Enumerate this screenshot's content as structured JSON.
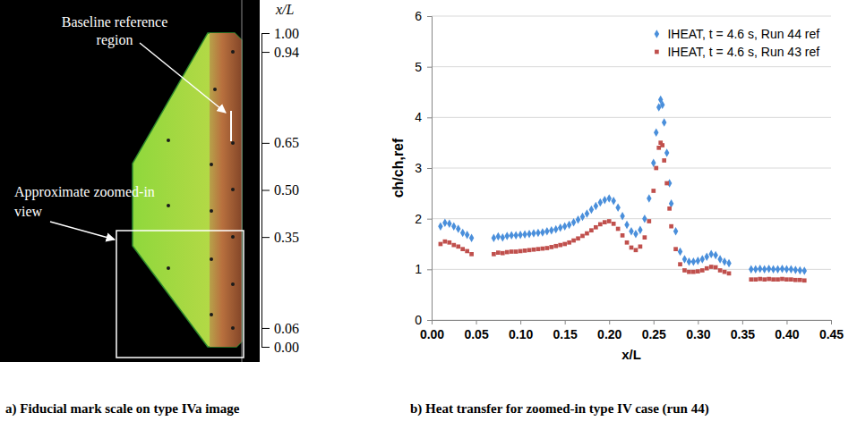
{
  "chart_data": [
    {
      "type": "image",
      "caption": "a) Fiducial mark scale on type IVa image",
      "y_label": "x/L",
      "ylim": [
        0,
        1
      ],
      "yticks": [
        {
          "value": 1,
          "label": "1.00"
        },
        {
          "value": 0.94,
          "label": "0.94"
        },
        {
          "value": 0.65,
          "label": "0.65"
        },
        {
          "value": 0.5,
          "label": "0.50"
        },
        {
          "value": 0.35,
          "label": "0.35"
        },
        {
          "value": 0.06,
          "label": "0.06"
        },
        {
          "value": 0,
          "label": "0.00"
        }
      ],
      "annotations": [
        "Baseline reference region",
        "Approximate zoomed-in view"
      ]
    },
    {
      "type": "scatter",
      "caption": "b) Heat transfer for zoomed-in type IV case (run 44)",
      "x_label": "x/L",
      "y_label": "ch/ch,ref",
      "xlim": [
        0,
        0.45
      ],
      "xticks": [
        {
          "value": 0,
          "label": "0.00"
        },
        {
          "value": 0.05,
          "label": "0.05"
        },
        {
          "value": 0.1,
          "label": "0.10"
        },
        {
          "value": 0.15,
          "label": "0.15"
        },
        {
          "value": 0.2,
          "label": "0.20"
        },
        {
          "value": 0.25,
          "label": "0.25"
        },
        {
          "value": 0.3,
          "label": "0.30"
        },
        {
          "value": 0.35,
          "label": "0.35"
        },
        {
          "value": 0.4,
          "label": "0.40"
        },
        {
          "value": 0.45,
          "label": "0.45"
        }
      ],
      "ylim": [
        0,
        6
      ],
      "yticks": [
        0,
        1,
        2,
        3,
        4,
        5,
        6
      ],
      "grid": true,
      "legend": "upper right",
      "x": [
        0.01,
        0.015,
        0.02,
        0.025,
        0.03,
        0.035,
        0.04,
        0.045,
        0.07,
        0.075,
        0.08,
        0.085,
        0.09,
        0.095,
        0.1,
        0.105,
        0.11,
        0.115,
        0.12,
        0.125,
        0.13,
        0.135,
        0.14,
        0.145,
        0.15,
        0.155,
        0.16,
        0.165,
        0.17,
        0.175,
        0.18,
        0.185,
        0.19,
        0.195,
        0.2,
        0.205,
        0.21,
        0.215,
        0.22,
        0.225,
        0.23,
        0.235,
        0.24,
        0.245,
        0.25,
        0.253,
        0.256,
        0.258,
        0.26,
        0.262,
        0.265,
        0.268,
        0.27,
        0.275,
        0.28,
        0.285,
        0.29,
        0.295,
        0.3,
        0.305,
        0.31,
        0.315,
        0.32,
        0.325,
        0.33,
        0.335,
        0.36,
        0.365,
        0.37,
        0.375,
        0.38,
        0.385,
        0.39,
        0.395,
        0.4,
        0.405,
        0.41,
        0.415,
        0.42
      ],
      "series": [
        {
          "name": "IHEAT, t = 4.6 s, Run 44 ref",
          "color": "#4a8fdb",
          "marker": "diamond",
          "values": [
            1.85,
            1.92,
            1.9,
            1.85,
            1.8,
            1.72,
            1.68,
            1.62,
            1.62,
            1.65,
            1.63,
            1.66,
            1.67,
            1.67,
            1.68,
            1.69,
            1.7,
            1.71,
            1.72,
            1.73,
            1.75,
            1.77,
            1.79,
            1.82,
            1.85,
            1.88,
            1.93,
            1.98,
            2.04,
            2.1,
            2.18,
            2.25,
            2.32,
            2.37,
            2.4,
            2.35,
            2.22,
            2.05,
            1.88,
            1.75,
            1.7,
            1.78,
            2.0,
            2.4,
            3.1,
            3.7,
            4.2,
            4.35,
            4.25,
            3.9,
            3.3,
            2.7,
            2.3,
            1.75,
            1.35,
            1.2,
            1.15,
            1.15,
            1.17,
            1.2,
            1.25,
            1.3,
            1.28,
            1.2,
            1.15,
            1.12,
            1.0,
            1.0,
            1.01,
            1.0,
            1.01,
            1.0,
            1.0,
            1.01,
            1.0,
            1.0,
            0.99,
            0.98,
            0.97
          ]
        },
        {
          "name": "IHEAT, t = 4.6 s, Run 43 ref",
          "color": "#c0504d",
          "marker": "square",
          "values": [
            1.5,
            1.55,
            1.53,
            1.48,
            1.45,
            1.4,
            1.36,
            1.3,
            1.3,
            1.33,
            1.32,
            1.34,
            1.35,
            1.35,
            1.36,
            1.37,
            1.38,
            1.39,
            1.4,
            1.41,
            1.42,
            1.44,
            1.46,
            1.48,
            1.5,
            1.53,
            1.57,
            1.61,
            1.66,
            1.71,
            1.77,
            1.83,
            1.89,
            1.93,
            1.95,
            1.9,
            1.8,
            1.67,
            1.53,
            1.43,
            1.38,
            1.45,
            1.63,
            1.95,
            2.55,
            3.0,
            3.4,
            3.5,
            3.45,
            3.15,
            2.7,
            2.2,
            1.85,
            1.4,
            1.1,
            0.98,
            0.95,
            0.95,
            0.96,
            0.98,
            1.02,
            1.05,
            1.04,
            0.98,
            0.95,
            0.92,
            0.8,
            0.8,
            0.81,
            0.8,
            0.81,
            0.8,
            0.8,
            0.81,
            0.8,
            0.8,
            0.79,
            0.79,
            0.78
          ]
        }
      ]
    }
  ]
}
